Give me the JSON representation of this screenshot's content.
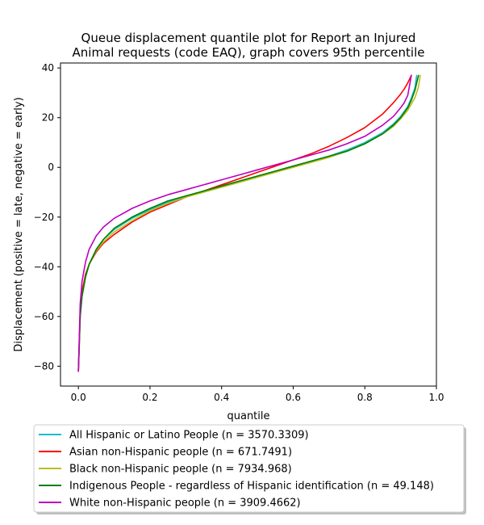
{
  "chart_data": {
    "type": "line",
    "title": "Queue displacement quantile plot for Report an Injured\nAnimal  requests (code EAQ), graph covers 95th percentile",
    "xlabel": "quantile",
    "ylabel": "Displacement (positive = late, negative = early)",
    "xlim": [
      -0.05,
      1.0
    ],
    "ylim": [
      -88,
      42
    ],
    "xticks": [
      0.0,
      0.2,
      0.4,
      0.6,
      0.8,
      1.0
    ],
    "xtick_labels": [
      "0.0",
      "0.2",
      "0.4",
      "0.6",
      "0.8",
      "1.0"
    ],
    "yticks": [
      -80,
      -60,
      -40,
      -20,
      0,
      20,
      40
    ],
    "ytick_labels": [
      "−80",
      "−60",
      "−40",
      "−20",
      "0",
      "20",
      "40"
    ],
    "grid": false,
    "legend_position": "below-plot",
    "series": [
      {
        "name": "All Hispanic or Latino People (n = 3570.3309)",
        "color": "#17becf",
        "x": [
          0.0,
          0.005,
          0.01,
          0.02,
          0.03,
          0.05,
          0.07,
          0.1,
          0.15,
          0.2,
          0.25,
          0.3,
          0.35,
          0.4,
          0.45,
          0.5,
          0.55,
          0.6,
          0.65,
          0.7,
          0.75,
          0.8,
          0.85,
          0.88,
          0.9,
          0.92,
          0.93,
          0.94,
          0.945
        ],
        "values": [
          -82,
          -60,
          -52,
          -44,
          -39,
          -33,
          -29,
          -25,
          -20.5,
          -17,
          -14,
          -11.5,
          -9.5,
          -7.5,
          -5.5,
          -3.5,
          -1.5,
          0.5,
          2.5,
          4.5,
          7,
          10,
          14,
          17.5,
          20.5,
          24.5,
          28,
          32,
          37
        ]
      },
      {
        "name": "Asian non-Hispanic people (n = 671.7491)",
        "color": "#ff0000",
        "x": [
          0.0,
          0.005,
          0.01,
          0.02,
          0.03,
          0.05,
          0.07,
          0.1,
          0.15,
          0.2,
          0.25,
          0.3,
          0.35,
          0.4,
          0.45,
          0.5,
          0.55,
          0.6,
          0.65,
          0.7,
          0.75,
          0.8,
          0.85,
          0.88,
          0.9,
          0.91,
          0.92,
          0.93
        ],
        "values": [
          -82,
          -58,
          -50,
          -43,
          -39,
          -34,
          -30.5,
          -27,
          -22,
          -18,
          -15,
          -12,
          -9.5,
          -7,
          -4.5,
          -2,
          0.5,
          3,
          5.5,
          8.5,
          12,
          16,
          21.5,
          26,
          29.5,
          31.5,
          34,
          37
        ]
      },
      {
        "name": "Black non-Hispanic people (n = 7934.968)",
        "color": "#bcbd22",
        "x": [
          0.0,
          0.005,
          0.01,
          0.02,
          0.03,
          0.05,
          0.07,
          0.1,
          0.15,
          0.2,
          0.25,
          0.3,
          0.35,
          0.4,
          0.45,
          0.5,
          0.55,
          0.6,
          0.65,
          0.7,
          0.75,
          0.8,
          0.85,
          0.88,
          0.9,
          0.92,
          0.94,
          0.95,
          0.955
        ],
        "values": [
          -82,
          -60,
          -52,
          -44,
          -39,
          -33.5,
          -30,
          -26,
          -21.5,
          -17.5,
          -14.5,
          -12,
          -10,
          -8,
          -6,
          -4,
          -2,
          0,
          2,
          4,
          6.5,
          9.5,
          13.5,
          16.5,
          19.5,
          23,
          28,
          32.5,
          37
        ]
      },
      {
        "name": "Indigenous People - regardless of Hispanic identification (n = 49.148)",
        "color": "#008000",
        "x": [
          0.0,
          0.005,
          0.01,
          0.02,
          0.03,
          0.05,
          0.07,
          0.1,
          0.15,
          0.2,
          0.25,
          0.3,
          0.35,
          0.4,
          0.45,
          0.5,
          0.55,
          0.6,
          0.65,
          0.7,
          0.75,
          0.8,
          0.85,
          0.88,
          0.9,
          0.92,
          0.93,
          0.94,
          0.95
        ],
        "values": [
          -82,
          -60,
          -52,
          -44,
          -39,
          -33,
          -29,
          -24.5,
          -20,
          -16.5,
          -13.5,
          -11.5,
          -9.5,
          -7.5,
          -5.5,
          -3.5,
          -1.5,
          0.5,
          2.5,
          4.5,
          6.5,
          9.5,
          13.5,
          17,
          20,
          24,
          27,
          31,
          37
        ]
      },
      {
        "name": "White non-Hispanic people (n = 3909.4662)",
        "color": "#bf00bf",
        "x": [
          0.0,
          0.005,
          0.01,
          0.02,
          0.03,
          0.05,
          0.07,
          0.1,
          0.15,
          0.2,
          0.25,
          0.3,
          0.35,
          0.4,
          0.45,
          0.5,
          0.55,
          0.6,
          0.65,
          0.7,
          0.75,
          0.8,
          0.85,
          0.88,
          0.9,
          0.91,
          0.92,
          0.93
        ],
        "values": [
          -82,
          -55,
          -46,
          -38,
          -33,
          -27.5,
          -24,
          -20.5,
          -16.5,
          -13.5,
          -11,
          -9,
          -7,
          -5,
          -3,
          -1,
          1,
          3,
          5,
          7,
          9.5,
          12.5,
          17,
          20.5,
          24,
          26,
          29,
          37
        ]
      }
    ]
  }
}
